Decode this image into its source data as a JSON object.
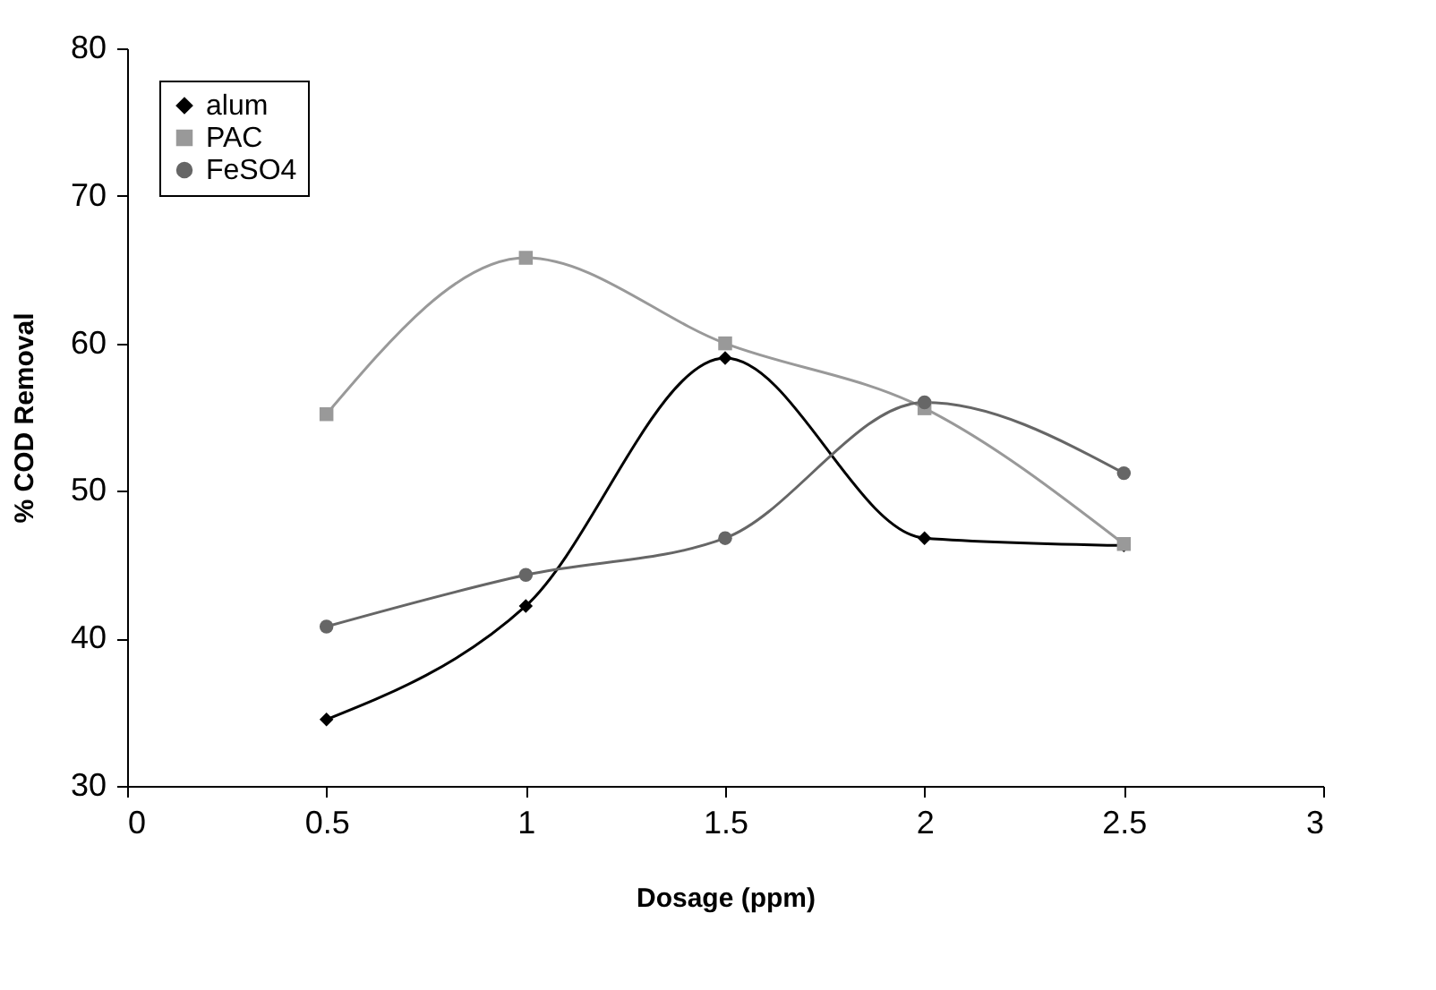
{
  "chart_data": {
    "type": "line",
    "xlabel": "Dosage (ppm)",
    "ylabel": "% COD Removal",
    "x": [
      0.5,
      1,
      1.5,
      2,
      2.5
    ],
    "series": [
      {
        "name": "alum",
        "color": "#000000",
        "marker": "diamond",
        "values": [
          34.5,
          42.2,
          59,
          46.8,
          46.3
        ]
      },
      {
        "name": "PAC",
        "color": "#999999",
        "marker": "square",
        "values": [
          55.2,
          65.8,
          60,
          55.6,
          46.4
        ]
      },
      {
        "name": "FeSO4",
        "color": "#666666",
        "marker": "circle",
        "values": [
          40.8,
          44.3,
          46.8,
          56,
          51.2
        ]
      }
    ],
    "xlim": [
      0,
      3
    ],
    "xticks": [
      0,
      0.5,
      1,
      1.5,
      2,
      2.5,
      3
    ],
    "ylim": [
      30,
      80
    ],
    "yticks": [
      30,
      40,
      50,
      60,
      70,
      80
    ],
    "grid": false,
    "legend": "top left",
    "line_style": "solid"
  }
}
